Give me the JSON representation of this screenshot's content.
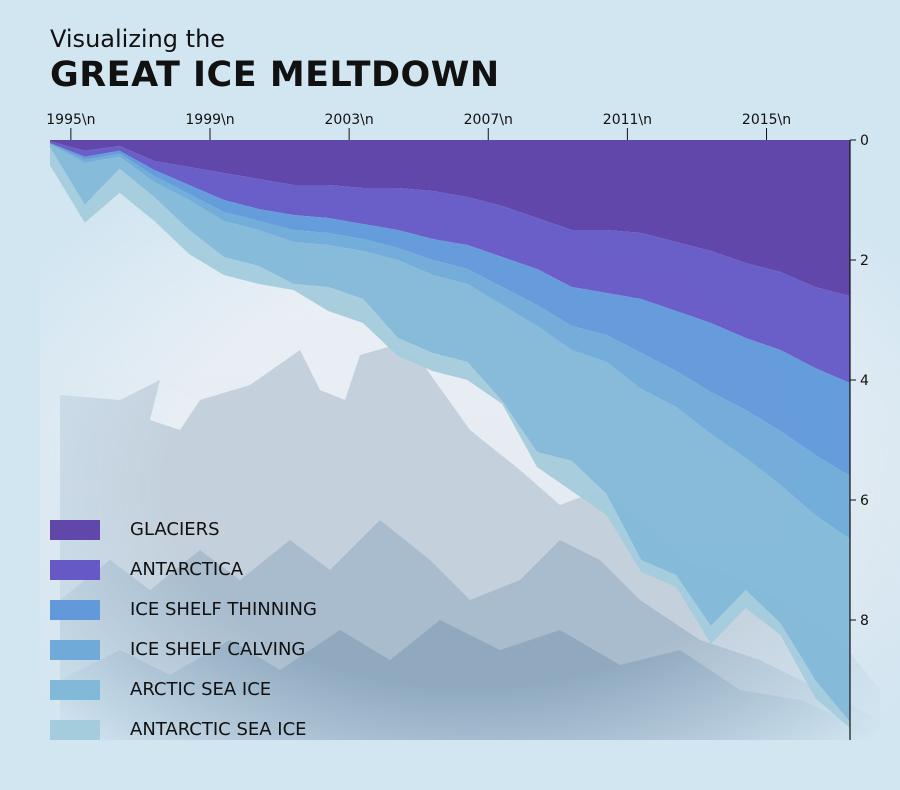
{
  "title": {
    "subtitle": "Visualizing the",
    "main": "GREAT ICE MELTDOWN"
  },
  "colors": {
    "background": "#d2e6f2",
    "glaciers": "#6247ab",
    "antarctica": "#6659c6",
    "ice_shelf_thinning": "#6199da",
    "ice_shelf_calving": "#70aad8",
    "arctic_sea_ice": "#83b9d8",
    "antarctic_sea_ice": "#a5ccdd"
  },
  "chart_data": {
    "type": "area",
    "x": [
      1994.4,
      1995.4,
      1996.4,
      1997.4,
      1998.4,
      1999.4,
      2000.4,
      2001.4,
      2002.4,
      2003.4,
      2004.4,
      2005.4,
      2006.4,
      2007.4,
      2008.4,
      2009.4,
      2010.4,
      2011.4,
      2012.4,
      2013.4,
      2014.4,
      2015.4,
      2016.4,
      2017.4
    ],
    "x_tick_labels": [
      "1995\\n",
      "1999\\n",
      "2003\\n",
      "2007\\n",
      "2011\\n",
      "2015\\n"
    ],
    "x_tick_values": [
      1995,
      1999,
      2003,
      2007,
      2011,
      2015
    ],
    "xlim": [
      1994.4,
      2017.4
    ],
    "y_tick_labels": [
      "0",
      "2",
      "4",
      "6",
      "8"
    ],
    "y_tick_values": [
      0,
      2,
      4,
      6,
      8
    ],
    "ylim": [
      0,
      10
    ],
    "y_axis_side": "right",
    "y_inverted": true,
    "stacking": "cumulative loss, stacked downward from 0",
    "legend_position": "bottom-left",
    "series": [
      {
        "name": "GLACIERS",
        "color_key": "glaciers",
        "values": [
          0.02,
          0.18,
          0.1,
          0.35,
          0.45,
          0.55,
          0.65,
          0.75,
          0.75,
          0.8,
          0.8,
          0.85,
          0.95,
          1.1,
          1.3,
          1.5,
          1.5,
          1.55,
          1.7,
          1.85,
          2.05,
          2.2,
          2.45,
          2.6
        ]
      },
      {
        "name": "ANTARCTICA",
        "color_key": "antarctica",
        "values": [
          0.03,
          0.1,
          0.08,
          0.15,
          0.3,
          0.45,
          0.5,
          0.5,
          0.55,
          0.6,
          0.7,
          0.8,
          0.8,
          0.85,
          0.85,
          0.95,
          1.05,
          1.1,
          1.15,
          1.2,
          1.25,
          1.3,
          1.35,
          1.45
        ]
      },
      {
        "name": "ICE SHELF THINNING",
        "color_key": "ice_shelf_thinning",
        "values": [
          0.01,
          0.05,
          0.05,
          0.1,
          0.15,
          0.2,
          0.2,
          0.25,
          0.25,
          0.25,
          0.3,
          0.35,
          0.4,
          0.5,
          0.6,
          0.65,
          0.7,
          0.9,
          1.0,
          1.15,
          1.2,
          1.35,
          1.45,
          1.55
        ]
      },
      {
        "name": "ICE SHELF CALVING",
        "color_key": "ice_shelf_calving",
        "values": [
          0.01,
          0.05,
          0.05,
          0.1,
          0.1,
          0.15,
          0.15,
          0.2,
          0.2,
          0.2,
          0.2,
          0.25,
          0.25,
          0.3,
          0.35,
          0.4,
          0.45,
          0.6,
          0.6,
          0.7,
          0.8,
          0.9,
          1.0,
          1.05
        ]
      },
      {
        "name": "ARCTIC SEA ICE",
        "color_key": "arctic_sea_ice",
        "values": [
          0.05,
          0.7,
          0.2,
          0.25,
          0.5,
          0.6,
          0.6,
          0.7,
          0.7,
          0.8,
          1.3,
          1.3,
          1.3,
          1.6,
          2.1,
          1.85,
          2.2,
          2.85,
          2.8,
          3.2,
          2.2,
          2.3,
          2.75,
          3.05
        ]
      },
      {
        "name": "ANTARCTIC SEA ICE",
        "color_key": "antarctic_sea_ice",
        "values": [
          0.3,
          0.3,
          0.4,
          0.4,
          0.4,
          0.3,
          0.3,
          0.1,
          0.4,
          0.4,
          0.3,
          0.3,
          0.3,
          0.05,
          0.25,
          0.5,
          0.35,
          0.2,
          0.2,
          0.3,
          0.3,
          0.2,
          0.3,
          0.1
        ]
      }
    ]
  }
}
